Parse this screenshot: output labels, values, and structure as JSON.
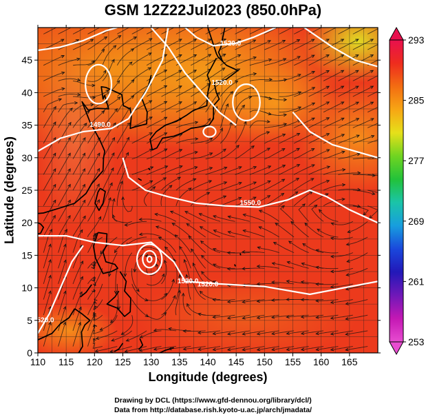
{
  "title": "GSM 12Z22Jul2023 (850.0hPa)",
  "chart_data": {
    "type": "map",
    "xlabel": "Longitude (degrees)",
    "ylabel": "Latitude  (degrees)",
    "xlim": [
      110,
      170
    ],
    "ylim": [
      0,
      50
    ],
    "x_ticks": [
      "110",
      "115",
      "120",
      "125",
      "130",
      "135",
      "140",
      "145",
      "150",
      "155",
      "160",
      "165"
    ],
    "y_ticks": [
      "0",
      "5",
      "10",
      "15",
      "20",
      "25",
      "30",
      "35",
      "40",
      "45"
    ],
    "colorbar": {
      "min": 253,
      "max": 293,
      "ticks": [
        "293",
        "285",
        "277",
        "269",
        "261",
        "253"
      ],
      "tick_values": [
        293,
        285,
        277,
        269,
        261,
        253
      ],
      "colors": [
        "#e8104e",
        "#ee2c1e",
        "#f36d12",
        "#f7a614",
        "#e6e01a",
        "#6fd421",
        "#22c23a",
        "#1bc4a8",
        "#179ede",
        "#1a48dc",
        "#2218b8",
        "#7018b8",
        "#c418b4",
        "#e84cd0"
      ]
    },
    "contour_labels": [
      {
        "text": "1520.0",
        "lon": 144,
        "lat": 47.5
      },
      {
        "text": "1520.0",
        "lon": 142.5,
        "lat": 41.5
      },
      {
        "text": "1490.0",
        "lon": 121,
        "lat": 35
      },
      {
        "text": "1550.0",
        "lon": 147.5,
        "lat": 23
      },
      {
        "text": "1520.0",
        "lon": 136.5,
        "lat": 11
      },
      {
        "text": "1520.0",
        "lon": 140,
        "lat": 10.5
      },
      {
        "text": "1520.0",
        "lon": 111,
        "lat": 5
      }
    ],
    "contours": [
      {
        "pts": [
          [
            110,
            46.5
          ],
          [
            114,
            47
          ],
          [
            118,
            48
          ],
          [
            122,
            49.5
          ],
          [
            124,
            50
          ]
        ]
      },
      {
        "pts": [
          [
            136,
            50
          ],
          [
            138,
            48.5
          ],
          [
            141,
            47.2
          ],
          [
            145,
            47.6
          ],
          [
            148,
            48.5
          ],
          [
            152,
            50
          ]
        ]
      },
      {
        "pts": [
          [
            130,
            50
          ],
          [
            133,
            47
          ],
          [
            136,
            43
          ],
          [
            139,
            40
          ],
          [
            142,
            37
          ],
          [
            145,
            35
          ]
        ]
      },
      {
        "pts": [
          [
            110,
            31
          ],
          [
            114,
            33
          ],
          [
            118,
            34
          ],
          [
            123,
            34.5
          ],
          [
            126,
            36
          ],
          [
            129,
            40
          ],
          [
            132,
            45
          ],
          [
            133,
            50
          ]
        ]
      },
      {
        "pts": [
          [
            125,
            30
          ],
          [
            126,
            27
          ],
          [
            129,
            25
          ],
          [
            133,
            24
          ],
          [
            138,
            23
          ],
          [
            143,
            22.6
          ],
          [
            149,
            22.4
          ],
          [
            154,
            23.5
          ],
          [
            158,
            25
          ],
          [
            161,
            24
          ],
          [
            165,
            22
          ],
          [
            170,
            20
          ]
        ]
      },
      {
        "pts": [
          [
            155,
            37
          ],
          [
            158,
            34
          ],
          [
            162,
            32
          ],
          [
            166,
            31
          ],
          [
            170,
            30
          ]
        ]
      },
      {
        "pts": [
          [
            157,
            50
          ],
          [
            162,
            47
          ],
          [
            166,
            45
          ],
          [
            170,
            44
          ]
        ]
      },
      {
        "pts": [
          [
            110,
            18
          ],
          [
            115,
            18
          ],
          [
            120,
            17
          ],
          [
            125,
            16.5
          ],
          [
            130,
            17
          ],
          [
            134,
            14
          ],
          [
            136,
            11
          ],
          [
            142,
            10.6
          ],
          [
            150,
            10.2
          ],
          [
            158,
            9
          ],
          [
            164,
            10
          ],
          [
            170,
            11
          ]
        ]
      },
      {
        "pts": [
          [
            110,
            3
          ],
          [
            112,
            6
          ],
          [
            114,
            10
          ],
          [
            116,
            14
          ],
          [
            118,
            16.5
          ]
        ]
      }
    ],
    "closed_contours": [
      {
        "lon": 120.7,
        "lat": 41.3,
        "rlon": 2.3,
        "rlat": 3
      },
      {
        "lon": 146.8,
        "lat": 38.5,
        "rlon": 2.4,
        "rlat": 2.8
      },
      {
        "lon": 140.3,
        "lat": 34,
        "rlon": 1.1,
        "rlat": 0.8
      },
      {
        "lon": 129.7,
        "lat": 14.4,
        "rlon": 2.2,
        "rlat": 2.3
      },
      {
        "lon": 129.7,
        "lat": 14.4,
        "rlon": 1.2,
        "rlat": 1.3
      },
      {
        "lon": 129.7,
        "lat": 14.4,
        "rlon": 0.4,
        "rlat": 0.45
      }
    ],
    "coastlines": [
      {
        "pts": [
          [
            140,
            50
          ],
          [
            141.5,
            46
          ],
          [
            141.8,
            45.5
          ],
          [
            143.3,
            44.2
          ],
          [
            145.3,
            43.4
          ],
          [
            143.2,
            42
          ],
          [
            141.1,
            41.5
          ],
          [
            141.5,
            40
          ],
          [
            142,
            39
          ],
          [
            141,
            38
          ],
          [
            141,
            36
          ],
          [
            140.2,
            35
          ],
          [
            139,
            34.8
          ],
          [
            137,
            34.5
          ],
          [
            135.5,
            33.8
          ],
          [
            134,
            33.3
          ],
          [
            132,
            33
          ],
          [
            131,
            31.5
          ],
          [
            130.2,
            31.2
          ],
          [
            129.8,
            32.8
          ],
          [
            130.9,
            34
          ],
          [
            132.5,
            35
          ],
          [
            134.5,
            35.6
          ],
          [
            136.2,
            36.5
          ],
          [
            137.5,
            37.3
          ],
          [
            139.8,
            38
          ],
          [
            140,
            40
          ],
          [
            140.4,
            41.5
          ],
          [
            139.9,
            42.7
          ],
          [
            141.5,
            45.3
          ]
        ]
      },
      {
        "pts": [
          [
            143,
            50
          ],
          [
            142.3,
            47
          ],
          [
            141.9,
            46.2
          ],
          [
            142.6,
            44.8
          ]
        ]
      },
      {
        "pts": [
          [
            130,
            42.7
          ],
          [
            129.5,
            41
          ],
          [
            128.3,
            39.2
          ],
          [
            129.3,
            37
          ],
          [
            129.2,
            35.2
          ],
          [
            127,
            34.7
          ],
          [
            126.3,
            34.5
          ],
          [
            126.5,
            36.5
          ],
          [
            126.3,
            37.5
          ],
          [
            125.1,
            38
          ],
          [
            124.8,
            39.7
          ],
          [
            122,
            40.8
          ],
          [
            121.2,
            40.9
          ],
          [
            121.5,
            39
          ],
          [
            121.8,
            39.6
          ],
          [
            122.5,
            37.5
          ],
          [
            120.5,
            37.6
          ],
          [
            118.9,
            37.3
          ],
          [
            117.8,
            38.6
          ],
          [
            119.2,
            35.5
          ],
          [
            121,
            32.6
          ],
          [
            121.8,
            31
          ],
          [
            121.6,
            30
          ],
          [
            121.5,
            28
          ],
          [
            119.5,
            26
          ],
          [
            118.5,
            24.5
          ],
          [
            116.5,
            23
          ],
          [
            114,
            22.3
          ],
          [
            111,
            21.5
          ],
          [
            109.7,
            21.4
          ]
        ]
      },
      {
        "pts": [
          [
            121,
            25.3
          ],
          [
            121.9,
            24.8
          ],
          [
            121.5,
            23
          ],
          [
            120.8,
            21.9
          ],
          [
            120.1,
            23
          ],
          [
            120.6,
            24.7
          ],
          [
            121,
            25.3
          ]
        ]
      },
      {
        "pts": [
          [
            110,
            20
          ],
          [
            110.5,
            19.8
          ],
          [
            111,
            19.3
          ],
          [
            110.5,
            18.4
          ],
          [
            109.5,
            18.2
          ],
          [
            109,
            19.4
          ]
        ]
      },
      {
        "pts": [
          [
            120.6,
            18.5
          ],
          [
            122.2,
            18.3
          ],
          [
            122.1,
            16.5
          ],
          [
            121.5,
            15.5
          ],
          [
            122,
            14
          ],
          [
            123.6,
            13.6
          ],
          [
            124.1,
            13
          ],
          [
            123,
            12.5
          ],
          [
            121.5,
            12.2
          ],
          [
            120.2,
            14.5
          ],
          [
            119.8,
            16.4
          ],
          [
            120.6,
            18.5
          ]
        ]
      },
      {
        "pts": [
          [
            124.5,
            12.5
          ],
          [
            125.6,
            11
          ],
          [
            125.3,
            9.5
          ],
          [
            126.4,
            8.4
          ],
          [
            126.3,
            6.3
          ],
          [
            125.3,
            5.6
          ],
          [
            124,
            6.9
          ],
          [
            122.2,
            7.5
          ],
          [
            123.6,
            8.6
          ],
          [
            124.3,
            9.5
          ]
        ]
      },
      {
        "pts": [
          [
            119.5,
            10.5
          ],
          [
            118.5,
            9.3
          ],
          [
            117.5,
            8.6
          ]
        ]
      },
      {
        "pts": [
          [
            116.5,
            6.8
          ],
          [
            117.8,
            6
          ],
          [
            119.2,
            5
          ],
          [
            118.3,
            4.3
          ],
          [
            117.7,
            3.2
          ],
          [
            117.9,
            1
          ],
          [
            117.2,
            0
          ]
        ]
      },
      {
        "pts": [
          [
            110,
            2
          ],
          [
            111,
            2.4
          ],
          [
            112.5,
            3
          ],
          [
            114,
            4.5
          ],
          [
            115.5,
            5.4
          ],
          [
            116.5,
            6.8
          ]
        ]
      },
      {
        "pts": [
          [
            125,
            1.5
          ],
          [
            124.3,
            0.6
          ],
          [
            123.5,
            0.2
          ]
        ]
      },
      {
        "pts": [
          [
            128,
            2.2
          ],
          [
            128.5,
            1.2
          ],
          [
            127.8,
            0.5
          ]
        ]
      },
      {
        "pts": [
          [
            131.5,
            0
          ],
          [
            132.5,
            0.4
          ],
          [
            134,
            0.8
          ]
        ]
      },
      {
        "pts": [
          [
            127.7,
            26.8
          ],
          [
            128.3,
            26.5
          ]
        ]
      },
      {
        "pts": [
          [
            129.5,
            28.4
          ],
          [
            129.8,
            28.1
          ]
        ]
      },
      {
        "pts": [
          [
            145.7,
            15.3
          ],
          [
            145.8,
            15
          ]
        ]
      },
      {
        "pts": [
          [
            144.7,
            13.6
          ],
          [
            144.9,
            13.3
          ]
        ]
      }
    ]
  }
}
